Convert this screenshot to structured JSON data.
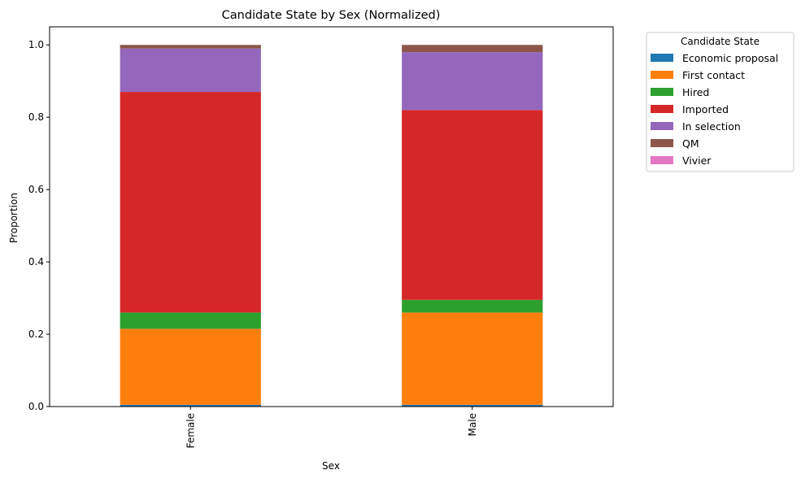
{
  "chart_data": {
    "type": "bar",
    "stacked": true,
    "title": "Candidate State by Sex (Normalized)",
    "xlabel": "Sex",
    "ylabel": "Proportion",
    "categories": [
      "Female",
      "Male"
    ],
    "ylim": [
      0,
      1.05
    ],
    "yticks": [
      "0.0",
      "0.2",
      "0.4",
      "0.6",
      "0.8",
      "1.0"
    ],
    "grid": false,
    "legend": {
      "title": "Candidate State",
      "placement": "outside-top-right"
    },
    "series": [
      {
        "name": "Economic proposal",
        "color": "#1f77b4",
        "values": [
          0.005,
          0.005
        ]
      },
      {
        "name": "First contact",
        "color": "#ff7f0e",
        "values": [
          0.21,
          0.255
        ]
      },
      {
        "name": "Hired",
        "color": "#2ca02c",
        "values": [
          0.045,
          0.035
        ]
      },
      {
        "name": "Imported",
        "color": "#d62728",
        "values": [
          0.61,
          0.525
        ]
      },
      {
        "name": "In selection",
        "color": "#9467bd",
        "values": [
          0.12,
          0.16
        ]
      },
      {
        "name": "QM",
        "color": "#8c564b",
        "values": [
          0.01,
          0.02
        ]
      },
      {
        "name": "Vivier",
        "color": "#e377c2",
        "values": [
          0.0,
          0.0
        ]
      }
    ]
  }
}
